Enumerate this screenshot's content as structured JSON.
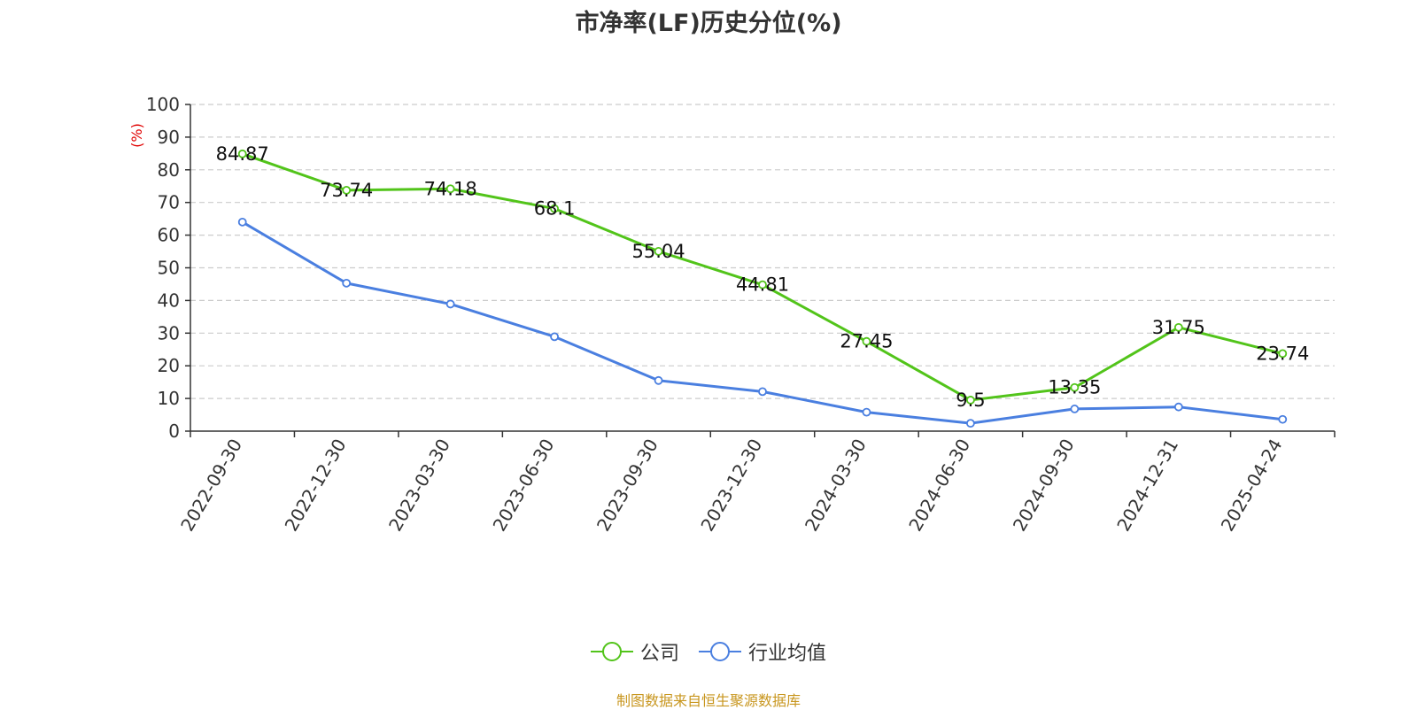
{
  "title": "市净率(LF)历史分位(%)",
  "source_note": "制图数据来自恒生聚源数据库",
  "colors": {
    "company": "#52c41a",
    "industry": "#4a7fe0",
    "grid": "#cccccc",
    "axis": "#333333",
    "unit": "#e00000",
    "source": "#c8961e"
  },
  "legend": {
    "items": [
      {
        "label": "公司",
        "icon": "circle-line-marker-green"
      },
      {
        "label": "行业均值",
        "icon": "circle-line-marker-blue"
      }
    ]
  },
  "chart_data": {
    "type": "line",
    "title": "市净率(LF)历史分位(%)",
    "ylabel": "(%)",
    "xlabel": "",
    "ylim": [
      0,
      100
    ],
    "yticks": [
      0,
      10,
      20,
      30,
      40,
      50,
      60,
      70,
      80,
      90,
      100
    ],
    "grid": true,
    "legend_position": "bottom-center",
    "categories": [
      "2022-09-30",
      "2022-12-30",
      "2023-03-30",
      "2023-06-30",
      "2023-09-30",
      "2023-12-30",
      "2024-03-30",
      "2024-06-30",
      "2024-09-30",
      "2024-12-31",
      "2025-04-24"
    ],
    "series": [
      {
        "name": "公司",
        "values": [
          84.87,
          73.74,
          74.18,
          68.1,
          55.04,
          44.81,
          27.45,
          9.5,
          13.35,
          31.75,
          23.74
        ],
        "data_labels": [
          "84.87",
          "73.74",
          "74.18",
          "68.1",
          "55.04",
          "44.81",
          "27.45",
          "9.5",
          "13.35",
          "31.75",
          "23.74"
        ]
      },
      {
        "name": "行业均值",
        "values": [
          64.0,
          45.3,
          38.9,
          28.9,
          15.5,
          12.1,
          5.8,
          2.4,
          6.8,
          7.4,
          3.6
        ]
      }
    ]
  }
}
